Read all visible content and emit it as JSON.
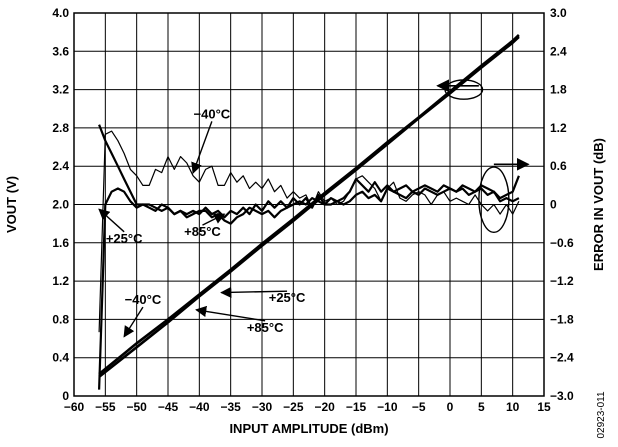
{
  "chart_data": {
    "type": "line",
    "xlabel": "INPUT AMPLITUDE (dBm)",
    "ylabel": "VOUT (V)",
    "y2label": "ERROR IN VOUT (dB)",
    "xlim": [
      -60,
      15
    ],
    "ylim": [
      0,
      4.0
    ],
    "y2lim": [
      -3.0,
      3.0
    ],
    "grid": true,
    "x_ticks": [
      -60,
      -55,
      -50,
      -45,
      -40,
      -35,
      -30,
      -25,
      -20,
      -15,
      -10,
      -5,
      0,
      5,
      10,
      15
    ],
    "x_tick_labels": [
      "−60",
      "−55",
      "−50",
      "−45",
      "−40",
      "−35",
      "−30",
      "−25",
      "−20",
      "−15",
      "−10",
      "−5",
      "0",
      "5",
      "10",
      "15"
    ],
    "y_ticks": [
      0,
      0.4,
      0.8,
      1.2,
      1.6,
      2.0,
      2.4,
      2.8,
      3.2,
      3.6,
      4.0
    ],
    "y_tick_labels": [
      "0",
      "0.4",
      "0.8",
      "1.2",
      "1.6",
      "2.0",
      "2.4",
      "2.8",
      "3.2",
      "3.6",
      "4.0"
    ],
    "y2_ticks": [
      -3.0,
      -2.4,
      -1.8,
      -1.2,
      -0.6,
      0,
      0.6,
      1.2,
      1.8,
      2.4,
      3.0
    ],
    "y2_tick_labels": [
      "−3.0",
      "−2.4",
      "−1.8",
      "−1.2",
      "−0.6",
      "0",
      "0.6",
      "1.2",
      "1.8",
      "2.4",
      "3.0"
    ],
    "series": [
      {
        "axis": "left",
        "x": [
          -56,
          -50,
          -45,
          -40,
          -35,
          -30,
          -25,
          -20,
          -15,
          -10,
          -5,
          0,
          5,
          10,
          11
        ],
        "values": [
          0.2,
          0.51,
          0.77,
          1.04,
          1.3,
          1.57,
          1.83,
          2.1,
          2.36,
          2.63,
          2.9,
          3.16,
          3.43,
          3.69,
          3.75
        ]
      },
      {
        "axis": "left",
        "x": [
          -56,
          -50,
          -45,
          -40,
          -35,
          -30,
          -25,
          -20,
          -15,
          -10,
          -5,
          0,
          5,
          10,
          11
        ],
        "values": [
          0.23,
          0.55,
          0.8,
          1.06,
          1.32,
          1.59,
          1.85,
          2.12,
          2.38,
          2.65,
          2.91,
          3.18,
          3.45,
          3.71,
          3.77
        ]
      },
      {
        "axis": "right",
        "x": [
          -56,
          -55,
          -54,
          -53,
          -52,
          -51,
          -50,
          -49,
          -48,
          -47,
          -46,
          -45,
          -44,
          -43,
          -42,
          -41,
          -40,
          -39,
          -38,
          -37,
          -36,
          -35,
          -34,
          -33,
          -32,
          -31,
          -30,
          -29,
          -28,
          -27,
          -26,
          -25,
          -24,
          -23,
          -22,
          -21,
          -20,
          -19,
          -18,
          -17,
          -16,
          -15,
          -14,
          -13,
          -12,
          -11,
          -10,
          -9,
          -8,
          -7,
          -6,
          -5,
          -4,
          -3,
          -2,
          -1,
          0,
          1,
          2,
          3,
          4,
          5,
          6,
          7,
          8,
          9,
          10,
          11
        ],
        "values": [
          -2.0,
          1.1,
          1.15,
          1.0,
          0.8,
          0.55,
          0.45,
          0.3,
          0.3,
          0.55,
          0.5,
          0.75,
          0.55,
          0.75,
          0.65,
          0.45,
          0.35,
          0.55,
          0.6,
          0.3,
          0.3,
          0.5,
          0.35,
          0.45,
          0.25,
          0.35,
          0.25,
          0.4,
          0.2,
          0.3,
          0.1,
          0.2,
          0.1,
          0.15,
          -0.05,
          0.2,
          0.05,
          0.1,
          0.0,
          0.05,
          0.2,
          0.4,
          0.45,
          0.35,
          0.25,
          0.05,
          0.25,
          0.35,
          0.1,
          0.05,
          0.15,
          0.2,
          0.15,
          0.0,
          0.15,
          0.2,
          0.05,
          0.1,
          0.05,
          0.0,
          0.15,
          0.0,
          -0.1,
          0.0,
          -0.15,
          0.0,
          -0.15,
          0.05
        ]
      },
      {
        "axis": "right",
        "x": [
          -56,
          -55,
          -54,
          -53,
          -52,
          -51,
          -50,
          -49,
          -48,
          -47,
          -46,
          -45,
          -44,
          -43,
          -42,
          -41,
          -40,
          -39,
          -38,
          -37,
          -36,
          -35,
          -34,
          -33,
          -32,
          -31,
          -30,
          -29,
          -28,
          -27,
          -26,
          -25,
          -24,
          -23,
          -22,
          -21,
          -20,
          -19,
          -18,
          -17,
          -16,
          -15,
          -14,
          -13,
          -12,
          -11,
          -10,
          -9,
          -8,
          -7,
          -6,
          -5,
          -4,
          -3,
          -2,
          -1,
          0,
          1,
          2,
          3,
          4,
          5,
          6,
          7,
          8,
          9,
          10,
          11
        ],
        "values": [
          -2.9,
          0.0,
          0.2,
          0.25,
          0.2,
          0.05,
          -0.05,
          0.0,
          0.0,
          -0.05,
          -0.1,
          -0.05,
          -0.15,
          -0.1,
          -0.15,
          -0.1,
          -0.15,
          -0.05,
          -0.15,
          -0.1,
          -0.2,
          -0.1,
          -0.15,
          -0.05,
          -0.15,
          0.0,
          -0.1,
          0.05,
          -0.05,
          0.05,
          -0.05,
          0.1,
          0.0,
          0.1,
          -0.05,
          0.15,
          0.0,
          0.1,
          0.05,
          0.0,
          0.05,
          0.15,
          0.2,
          0.1,
          0.15,
          0.05,
          0.25,
          0.2,
          0.15,
          0.1,
          0.2,
          0.15,
          0.25,
          0.2,
          0.15,
          0.2,
          0.25,
          0.2,
          0.25,
          0.15,
          0.2,
          0.25,
          0.15,
          0.2,
          0.05,
          0.1,
          0.05,
          0.1
        ]
      },
      {
        "axis": "right",
        "x": [
          -56,
          -55,
          -54,
          -53,
          -52,
          -51,
          -50,
          -49,
          -48,
          -47,
          -46,
          -45,
          -44,
          -43,
          -42,
          -41,
          -40,
          -39,
          -38,
          -37,
          -36,
          -35,
          -34,
          -33,
          -32,
          -31,
          -30,
          -29,
          -28,
          -27,
          -26,
          -25,
          -24,
          -23,
          -22,
          -21,
          -20,
          -19,
          -18,
          -17,
          -16,
          -15,
          -14,
          -13,
          -12,
          -11,
          -10,
          -9,
          -8,
          -7,
          -6,
          -5,
          -4,
          -3,
          -2,
          -1,
          0,
          1,
          2,
          3,
          4,
          5,
          6,
          7,
          8,
          9,
          10,
          11
        ],
        "values": [
          1.25,
          1.0,
          0.8,
          0.6,
          0.4,
          0.2,
          0.0,
          0.0,
          -0.05,
          -0.1,
          0.0,
          -0.05,
          -0.15,
          -0.1,
          -0.2,
          -0.15,
          -0.1,
          -0.1,
          -0.2,
          -0.15,
          -0.25,
          -0.3,
          -0.2,
          -0.15,
          -0.05,
          -0.1,
          -0.15,
          -0.1,
          -0.2,
          -0.1,
          -0.05,
          0.0,
          0.05,
          0.0,
          0.1,
          0.05,
          0.0,
          0.0,
          0.05,
          0.1,
          0.2,
          0.4,
          0.3,
          0.2,
          0.35,
          0.2,
          0.3,
          0.2,
          0.25,
          0.3,
          0.2,
          0.25,
          0.3,
          0.25,
          0.2,
          0.3,
          0.25,
          0.2,
          0.3,
          0.25,
          0.2,
          0.3,
          0.25,
          0.2,
          0.1,
          0.15,
          0.2,
          0.45
        ]
      }
    ],
    "annotations": [
      {
        "text": "−40°C",
        "tx": -38,
        "ty": 2.9,
        "ax": -41,
        "ay": 2.33
      },
      {
        "text": "+25°C",
        "tx": -52,
        "ty": 1.6,
        "ax": -56,
        "ay": 1.95
      },
      {
        "text": "+85°C",
        "tx": -39.5,
        "ty": 1.67,
        "ax": -36,
        "ay": 1.9
      },
      {
        "text": "−40°C",
        "tx": -49,
        "ty": 0.96,
        "ax": -52,
        "ay": 0.62
      },
      {
        "text": "+25°C",
        "tx": -26,
        "ty": 0.98,
        "ax": -36.5,
        "ay": 1.08
      },
      {
        "text": "+85°C",
        "tx": -29.5,
        "ty": 0.67,
        "ax": -40.5,
        "ay": 0.9
      }
    ],
    "left_arrow": {
      "tail": [
        4.6,
        3.24
      ],
      "head": [
        -2,
        3.24
      ]
    },
    "left_ellipse": {
      "cx": 2.2,
      "cy": 3.2,
      "rx": 3.0,
      "ry": 0.1
    },
    "right_arrow": {
      "tail": [
        7,
        2.42
      ],
      "head": [
        12.5,
        2.42
      ]
    },
    "right_ellipse": {
      "cx": 7,
      "cy": 2.05,
      "rx": 2.4,
      "ry": 0.34
    }
  },
  "figure_id": "02923-011"
}
